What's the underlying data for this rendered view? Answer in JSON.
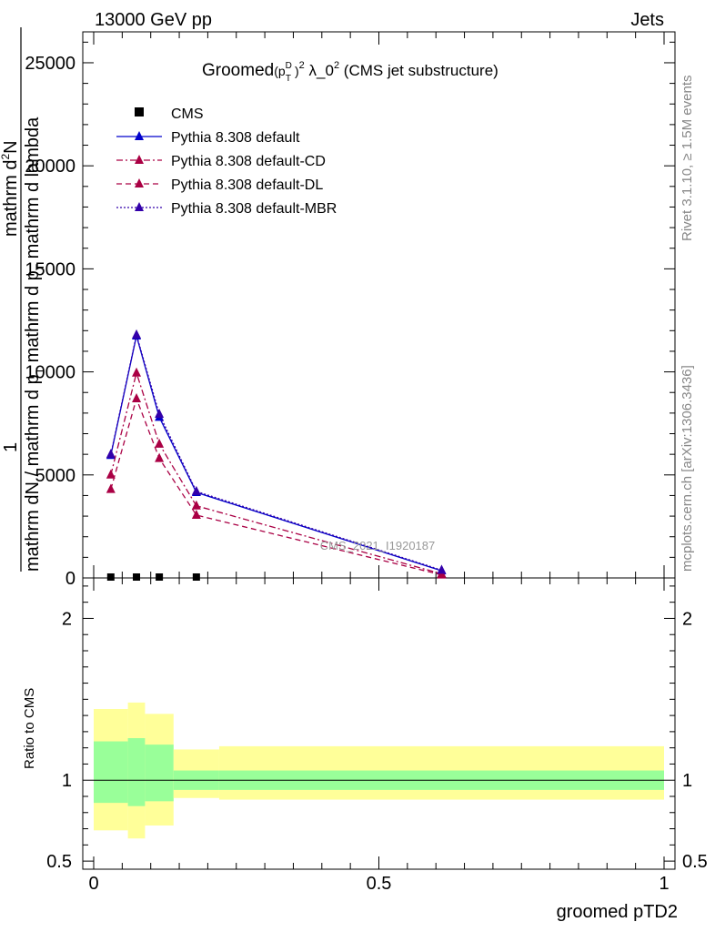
{
  "header": {
    "left": "13000 GeV pp",
    "right": "Jets"
  },
  "side_labels": {
    "rivet": "Rivet 3.1.10, ≥ 1.5M events",
    "mcplots": "mcplots.cern.ch [arXiv:1306.3436]"
  },
  "chart_data": {
    "type": "line",
    "title": "Groomed(p_T^D)^2 λ_0^2 (CMS jet substructure)",
    "title_parts": {
      "main": "Groomed",
      "pt_open": "(p",
      "pt_sup": "D",
      "pt_sub": "T",
      "pt_close": ")",
      "pt_pow": "2",
      "lambda": " λ_0",
      "lambda_pow": "2",
      "rest": " (CMS jet substructure)"
    },
    "xlabel": "groomed pTD2",
    "ylabel_main_numerator": "1",
    "ylabel_main_denominator": "mathrm d²N / mathrm d p_T mathrm d lambda",
    "ylabel_main_parts": {
      "numerator": "1",
      "line1": "mathrm d",
      "line1_sup": "2",
      "line1_rest": "N",
      "line2": "mathrm dN / mathrm d p",
      "line2_sub": "T",
      "line2_rest": " mathrm d p",
      "line2_sub2": "T",
      "line2_rest2": " mathrm d lambda"
    },
    "ylabel_ratio": "Ratio to CMS",
    "watermark": "CMS_2021_I1920187",
    "xlim": [
      0,
      1
    ],
    "ylim": [
      0,
      26500
    ],
    "ratio_ylim": [
      0.45,
      2.25
    ],
    "x_ticks": [
      0,
      0.5,
      1
    ],
    "x_tick_labels": [
      "0",
      "0.5",
      "1"
    ],
    "y_ticks": [
      0,
      5000,
      10000,
      15000,
      20000,
      25000
    ],
    "y_tick_labels": [
      "0",
      "5000",
      "10000",
      "15000",
      "20000",
      "25000"
    ],
    "ratio_ticks": [
      0.5,
      1,
      2
    ],
    "ratio_tick_labels": [
      "0.5",
      "1",
      "2"
    ],
    "data": {
      "name": "CMS",
      "x": [
        0.03,
        0.075,
        0.115,
        0.18
      ],
      "y": [
        0,
        0,
        0,
        0
      ]
    },
    "series": [
      {
        "name": "Pythia 8.308 default",
        "color": "#0000cc",
        "dash": "solid",
        "x": [
          0.03,
          0.075,
          0.115,
          0.18,
          0.61
        ],
        "y": [
          5950,
          11750,
          7800,
          4150,
          350
        ]
      },
      {
        "name": "Pythia 8.308 default-CD",
        "color": "#aa0044",
        "dash": "dashdot",
        "x": [
          0.03,
          0.075,
          0.115,
          0.18,
          0.61
        ],
        "y": [
          5000,
          9950,
          6500,
          3500,
          200
        ]
      },
      {
        "name": "Pythia 8.308 default-DL",
        "color": "#aa0044",
        "dash": "dashed",
        "x": [
          0.03,
          0.075,
          0.115,
          0.18,
          0.61
        ],
        "y": [
          4300,
          8700,
          5800,
          3050,
          150
        ]
      },
      {
        "name": "Pythia 8.308 default-MBR",
        "color": "#3300aa",
        "dash": "dotted",
        "x": [
          0.03,
          0.075,
          0.115,
          0.18,
          0.61
        ],
        "y": [
          6000,
          11800,
          7950,
          4200,
          380
        ]
      }
    ],
    "ratio_bands": [
      {
        "x0": 0.0,
        "x1": 0.06,
        "inner": [
          0.86,
          1.24
        ],
        "outer": [
          0.69,
          1.44
        ]
      },
      {
        "x0": 0.06,
        "x1": 0.09,
        "inner": [
          0.84,
          1.26
        ],
        "outer": [
          0.64,
          1.48
        ]
      },
      {
        "x0": 0.09,
        "x1": 0.14,
        "inner": [
          0.87,
          1.22
        ],
        "outer": [
          0.72,
          1.41
        ]
      },
      {
        "x0": 0.14,
        "x1": 0.22,
        "inner": [
          0.94,
          1.06
        ],
        "outer": [
          0.89,
          1.19
        ]
      },
      {
        "x0": 0.22,
        "x1": 1.0,
        "inner": [
          0.94,
          1.06
        ],
        "outer": [
          0.88,
          1.21
        ]
      }
    ],
    "colors": {
      "band_inner": "#99ff99",
      "band_outer": "#ffff99",
      "watermark": "#999999",
      "side_text": "#888888"
    },
    "legend_position": "top-left"
  }
}
